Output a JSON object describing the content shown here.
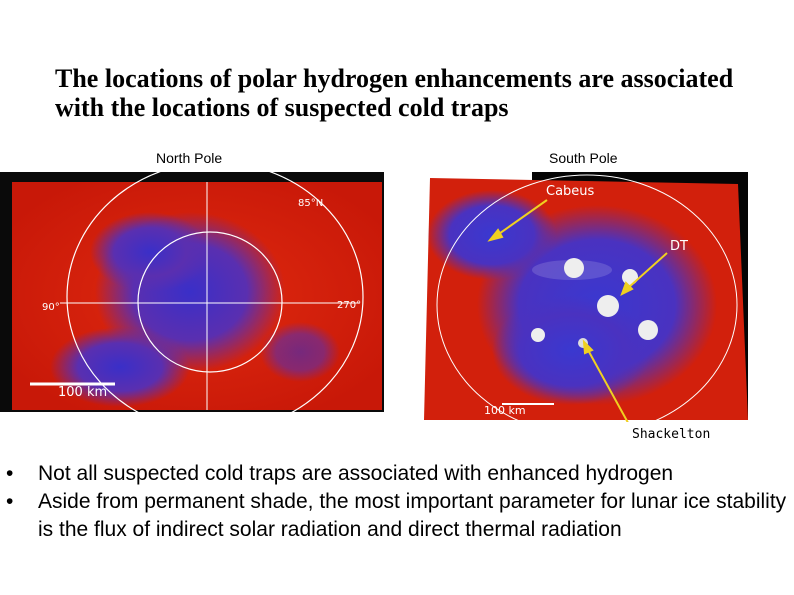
{
  "title": [
    "The locations of polar hydrogen enhancements are associated",
    "with the locations of suspected cold traps"
  ],
  "north_map": {
    "caption": "North Pole",
    "labels": [
      "85°N",
      "90°",
      "270°",
      "100 km"
    ]
  },
  "south_map": {
    "caption": "South Pole",
    "labels": [
      "Cabeus",
      "DT",
      "100 km",
      "Shackelton"
    ]
  },
  "bullets": [
    "Not all suspected cold traps are associated with enhanced hydrogen",
    "Aside from permanent shade, the most important parameter for lunar ice stability is the flux of indirect solar radiation and direct thermal radiation"
  ]
}
